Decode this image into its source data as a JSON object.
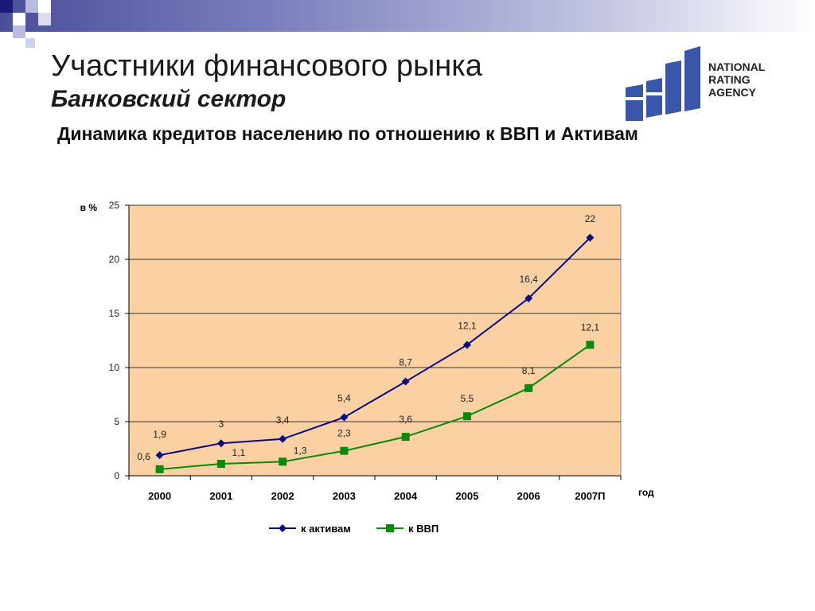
{
  "header": {
    "title": "Участники финансового рынка",
    "subtitle": "Банковский сектор",
    "chart_title": "Динамика кредитов населению по отношению к ВВП и Активам"
  },
  "logo": {
    "lines": [
      "NATIONAL",
      "RATING",
      "AGENCY"
    ],
    "color": "#3a56a8"
  },
  "colors": {
    "plot_background": "#fbd0a2",
    "accent_bar": "#4b4e9a"
  },
  "chart_data": {
    "type": "line",
    "categories": [
      "2000",
      "2001",
      "2002",
      "2003",
      "2004",
      "2005",
      "2006",
      "2007П"
    ],
    "ylabel": "в %",
    "xlabel": "год",
    "ylim": [
      0,
      25
    ],
    "yticks": [
      0,
      5,
      10,
      15,
      20,
      25
    ],
    "grid": true,
    "legend_position": "bottom",
    "series": [
      {
        "name": "к активам",
        "values": [
          1.9,
          3,
          3.4,
          5.4,
          8.7,
          12.1,
          16.4,
          22
        ],
        "labels": [
          "1,9",
          "3",
          "3,4",
          "5,4",
          "8,7",
          "12,1",
          "16,4",
          "22"
        ],
        "color": "#0a0a82",
        "marker": "diamond"
      },
      {
        "name": "к ВВП",
        "values": [
          0.6,
          1.1,
          1.3,
          2.3,
          3.6,
          5.5,
          8.1,
          12.1
        ],
        "labels": [
          "0,6",
          "1,1",
          "1,3",
          "2,3",
          "3,6",
          "5,5",
          "8,1",
          "12,1"
        ],
        "color": "#0a8a0a",
        "marker": "square"
      }
    ]
  }
}
